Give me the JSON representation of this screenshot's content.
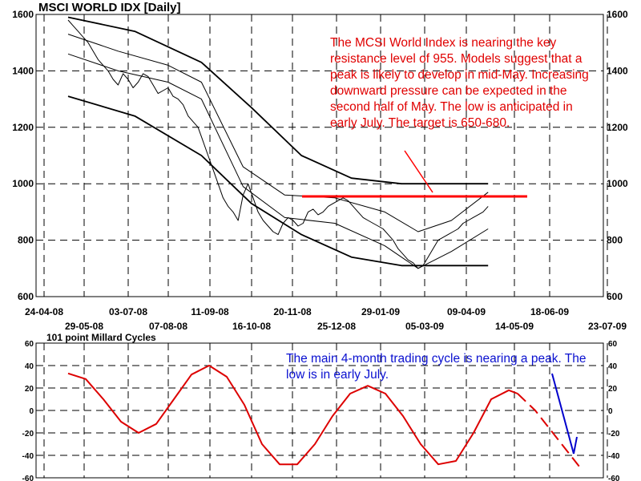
{
  "chart_data": [
    {
      "type": "line",
      "title": "MSCI WORLD IDX  [Daily]",
      "ylim": [
        600,
        1600
      ],
      "yticks": [
        600,
        800,
        1000,
        1200,
        1400,
        1600
      ],
      "xticks_upper": [
        "24-04-08",
        "03-07-08",
        "11-09-08",
        "20-11-08",
        "29-01-09",
        "09-04-09",
        "18-06-09"
      ],
      "xticks_lower": [
        "29-05-08",
        "07-08-08",
        "16-10-08",
        "25-12-08",
        "05-03-09",
        "14-05-09",
        "23-07-09"
      ],
      "resistance_level": 955,
      "annotation": "The MCSI World Index is nearing the key resistance level of 955.  Models suggest that a peak is likely to develop in mid-May.  Increasing downward pressure can be expected in the second half of May.  The low is anticipated in early July. The target is 650-680.",
      "series": [
        {
          "values": [
            [
              0,
              1580
            ],
            [
              3,
              1560
            ],
            [
              6,
              1540
            ],
            [
              9,
              1520
            ],
            [
              12,
              1500
            ],
            [
              15,
              1470
            ],
            [
              18,
              1440
            ],
            [
              21,
              1420
            ],
            [
              24,
              1400
            ],
            [
              27,
              1370
            ],
            [
              30,
              1350
            ],
            [
              33,
              1390
            ],
            [
              36,
              1370
            ],
            [
              39,
              1340
            ],
            [
              42,
              1360
            ],
            [
              45,
              1390
            ],
            [
              48,
              1380
            ],
            [
              51,
              1350
            ],
            [
              54,
              1320
            ],
            [
              57,
              1330
            ],
            [
              60,
              1340
            ],
            [
              63,
              1310
            ],
            [
              66,
              1300
            ],
            [
              69,
              1280
            ],
            [
              72,
              1240
            ],
            [
              75,
              1220
            ],
            [
              78,
              1200
            ],
            [
              81,
              1150
            ],
            [
              84,
              1100
            ],
            [
              87,
              1050
            ],
            [
              90,
              1000
            ],
            [
              93,
              950
            ],
            [
              96,
              920
            ],
            [
              99,
              900
            ],
            [
              102,
              870
            ],
            [
              105,
              960
            ],
            [
              108,
              1000
            ],
            [
              111,
              950
            ],
            [
              114,
              900
            ],
            [
              117,
              870
            ],
            [
              120,
              850
            ],
            [
              123,
              830
            ],
            [
              126,
              820
            ],
            [
              129,
              860
            ],
            [
              132,
              880
            ],
            [
              135,
              870
            ],
            [
              138,
              850
            ],
            [
              141,
              860
            ],
            [
              144,
              900
            ],
            [
              147,
              910
            ],
            [
              150,
              890
            ],
            [
              153,
              900
            ],
            [
              156,
              920
            ],
            [
              159,
              930
            ],
            [
              162,
              940
            ],
            [
              165,
              950
            ],
            [
              168,
              940
            ],
            [
              171,
              920
            ],
            [
              174,
              900
            ],
            [
              177,
              880
            ],
            [
              180,
              870
            ],
            [
              183,
              860
            ],
            [
              186,
              850
            ],
            [
              189,
              840
            ],
            [
              192,
              820
            ],
            [
              195,
              800
            ],
            [
              198,
              770
            ],
            [
              201,
              750
            ],
            [
              204,
              730
            ],
            [
              207,
              720
            ],
            [
              210,
              700
            ],
            [
              213,
              710
            ],
            [
              216,
              740
            ],
            [
              219,
              770
            ],
            [
              222,
              800
            ],
            [
              225,
              810
            ],
            [
              228,
              820
            ],
            [
              231,
              830
            ],
            [
              234,
              840
            ],
            [
              237,
              860
            ],
            [
              240,
              870
            ],
            [
              243,
              880
            ],
            [
              246,
              890
            ],
            [
              249,
              900
            ],
            [
              252,
              920
            ]
          ]
        },
        {
          "values": [
            [
              0,
              1590
            ],
            [
              40,
              1540
            ],
            [
              80,
              1430
            ],
            [
              110,
              1270
            ],
            [
              140,
              1100
            ],
            [
              170,
              1020
            ],
            [
              200,
              1000
            ],
            [
              230,
              1000
            ],
            [
              252,
              1000
            ]
          ]
        },
        {
          "values": [
            [
              0,
              1530
            ],
            [
              30,
              1470
            ],
            [
              60,
              1420
            ],
            [
              80,
              1360
            ],
            [
              105,
              1060
            ],
            [
              130,
              960
            ],
            [
              160,
              950
            ],
            [
              190,
              900
            ],
            [
              210,
              830
            ],
            [
              230,
              870
            ],
            [
              252,
              970
            ]
          ]
        },
        {
          "values": [
            [
              0,
              1460
            ],
            [
              30,
              1400
            ],
            [
              60,
              1360
            ],
            [
              80,
              1300
            ],
            [
              105,
              990
            ],
            [
              130,
              880
            ],
            [
              160,
              860
            ],
            [
              190,
              780
            ],
            [
              210,
              700
            ],
            [
              230,
              760
            ],
            [
              252,
              840
            ]
          ]
        },
        {
          "values": [
            [
              0,
              1310
            ],
            [
              40,
              1240
            ],
            [
              80,
              1100
            ],
            [
              110,
              930
            ],
            [
              140,
              820
            ],
            [
              170,
              740
            ],
            [
              200,
              710
            ],
            [
              230,
              710
            ],
            [
              252,
              710
            ]
          ]
        }
      ]
    },
    {
      "type": "line",
      "title": "101 point Millard Cycles",
      "ylim": [
        -60,
        60
      ],
      "yticks": [
        -60,
        -40,
        -20,
        0,
        20,
        40,
        60
      ],
      "annotation": "The main 4-month trading cycle is nearing a peak.  The low is in early July.",
      "series": [
        {
          "values": [
            [
              0,
              33
            ],
            [
              10,
              28
            ],
            [
              20,
              10
            ],
            [
              30,
              -10
            ],
            [
              40,
              -20
            ],
            [
              50,
              -12
            ],
            [
              60,
              10
            ],
            [
              70,
              32
            ],
            [
              80,
              40
            ],
            [
              90,
              30
            ],
            [
              100,
              5
            ],
            [
              110,
              -30
            ],
            [
              120,
              -48
            ],
            [
              130,
              -48
            ],
            [
              140,
              -30
            ],
            [
              150,
              -5
            ],
            [
              160,
              15
            ],
            [
              170,
              22
            ],
            [
              180,
              15
            ],
            [
              190,
              -5
            ],
            [
              200,
              -30
            ],
            [
              210,
              -48
            ],
            [
              220,
              -45
            ],
            [
              230,
              -20
            ],
            [
              240,
              10
            ],
            [
              250,
              18
            ],
            [
              255,
              15
            ]
          ]
        },
        {
          "values": [
            [
              255,
              15
            ],
            [
              265,
              0
            ],
            [
              275,
              -20
            ],
            [
              285,
              -40
            ],
            [
              290,
              -50
            ]
          ]
        }
      ]
    }
  ]
}
